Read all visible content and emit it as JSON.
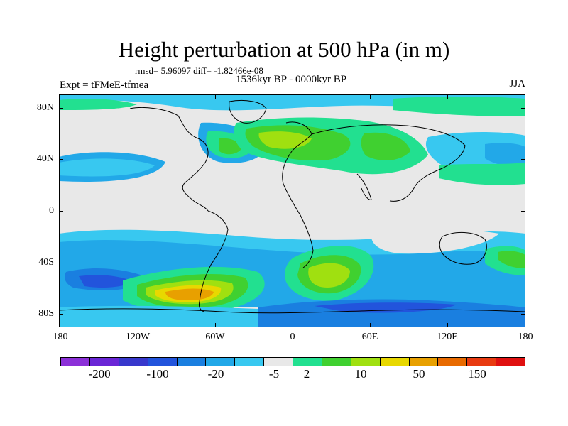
{
  "title": "Height perturbation at 500 hPa (in m)",
  "stats": "rmsd= 5.96097 diff= -1.82466e-08",
  "subtitle": "1536kyr BP - 0000kyr BP",
  "experiment": "Expt = tFMeE-tfmea",
  "season": "JJA",
  "lat_labels": [
    "80N",
    "40N",
    "0",
    "40S",
    "80S"
  ],
  "lon_labels": [
    "180",
    "120W",
    "60W",
    "0",
    "60E",
    "120E",
    "180"
  ],
  "colorbar": {
    "colors": [
      "#8c30d8",
      "#6a26d6",
      "#3838cc",
      "#2254dc",
      "#1a7fe0",
      "#22a8e8",
      "#38c8f0",
      "#e8e8e8",
      "#22e090",
      "#40d030",
      "#a0e010",
      "#e8d800",
      "#e8a000",
      "#e86a00",
      "#e83a10",
      "#e01010"
    ],
    "labels": [
      "-200",
      "-100",
      "-20",
      "-5",
      "2",
      "10",
      "50",
      "150"
    ]
  },
  "palette": {
    "neutral": "#e8e8e8",
    "lightblue": "#38c8f0",
    "blue": "#22a8e8",
    "darkblue": "#1a7fe0",
    "navy": "#2254dc",
    "teal": "#22e090",
    "green": "#40d030",
    "lime": "#a0e010",
    "yellow": "#e8d800",
    "orange": "#e8a000",
    "darkorange": "#e86a00"
  }
}
